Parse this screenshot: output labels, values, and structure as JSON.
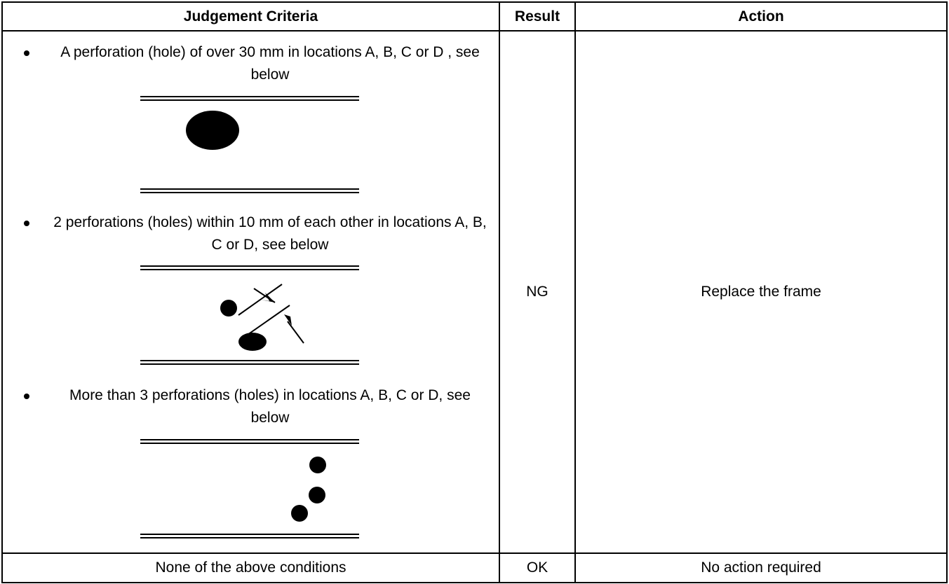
{
  "table": {
    "header": [
      "Judgement Criteria",
      "Result",
      "Action"
    ],
    "rows": [
      {
        "criteria": [
          "A perforation (hole) of over 30 mm in locations A, B, C or D , see below",
          "2 perforations (holes) within 10 mm of each other in locations A, B, C or D, see below",
          "More than 3 perforations (holes) in locations A, B, C or D, see below"
        ],
        "result": "NG",
        "action": "Replace the frame"
      },
      {
        "criteria": [
          "None of the above conditions"
        ],
        "result": "OK",
        "action": "No action required"
      }
    ]
  }
}
